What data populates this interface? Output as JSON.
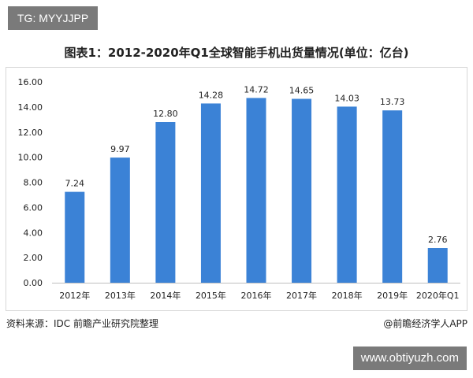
{
  "top_tag": "TG: MYYJJPP",
  "bottom_tag": "www.obtiyuzh.com",
  "source_text": "资料来源：IDC  前瞻产业研究院整理",
  "brand_text": "@前瞻经济学人APP",
  "colors": {
    "bar": "#3b82d6",
    "axis": "#bfbfbf"
  },
  "chart_data": {
    "type": "bar",
    "title": "图表1：2012-2020年Q1全球智能手机出货量情况(单位：亿台)",
    "categories": [
      "2012年",
      "2013年",
      "2014年",
      "2015年",
      "2016年",
      "2017年",
      "2018年",
      "2019年",
      "2020年Q1"
    ],
    "values": [
      7.24,
      9.97,
      12.8,
      14.28,
      14.72,
      14.65,
      14.03,
      13.73,
      2.76
    ],
    "value_labels": [
      "7.24",
      "9.97",
      "12.80",
      "14.28",
      "14.72",
      "14.65",
      "14.03",
      "13.73",
      "2.76"
    ],
    "ylim": [
      0,
      16
    ],
    "yticks": [
      "0.00",
      "2.00",
      "4.00",
      "6.00",
      "8.00",
      "10.00",
      "12.00",
      "14.00",
      "16.00"
    ],
    "grid": false,
    "legend": "none"
  }
}
